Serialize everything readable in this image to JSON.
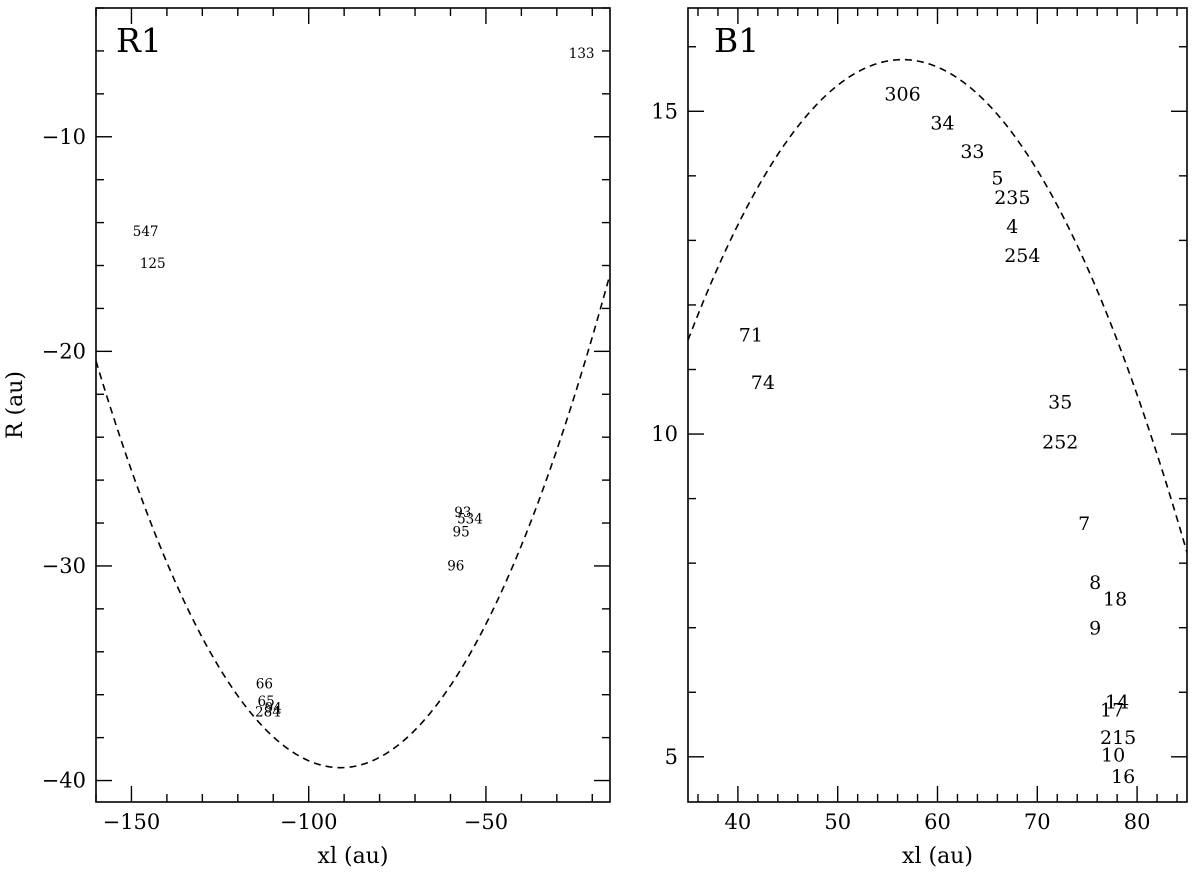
{
  "chart_data": [
    {
      "type": "scatter",
      "title": "R1",
      "xlabel": "xl (au)",
      "ylabel": "R (au)",
      "xlim": [
        -160,
        -15
      ],
      "ylim": [
        -41,
        -4
      ],
      "x_ticks": [
        -150,
        -100,
        -50
      ],
      "y_ticks": [
        -10,
        -20,
        -30,
        -40
      ],
      "x_minor_step": 10,
      "y_minor_step": 2,
      "x_tick_labels": [
        "−150",
        "−100",
        "−50"
      ],
      "y_tick_labels": [
        "−10",
        "−20",
        "−30",
        "−40"
      ],
      "grid": false,
      "curve": {
        "style": "dashed",
        "model": "parabola",
        "vertex": [
          -91,
          -39.4
        ],
        "a": 0.00398
      },
      "points": [
        {
          "label": "133",
          "x": -23,
          "y": -6.1
        },
        {
          "label": "547",
          "x": -146,
          "y": -14.4
        },
        {
          "label": "125",
          "x": -144,
          "y": -15.9
        },
        {
          "label": "93",
          "x": -56.5,
          "y": -27.5
        },
        {
          "label": "534",
          "x": -54.5,
          "y": -27.8
        },
        {
          "label": "95",
          "x": -57,
          "y": -28.4
        },
        {
          "label": "96",
          "x": -58.5,
          "y": -30.0
        },
        {
          "label": "66",
          "x": -112.5,
          "y": -35.5
        },
        {
          "label": "65",
          "x": -112,
          "y": -36.3
        },
        {
          "label": "94",
          "x": -110,
          "y": -36.6
        },
        {
          "label": "284",
          "x": -111.5,
          "y": -36.8
        }
      ]
    },
    {
      "type": "scatter",
      "title": "B1",
      "xlabel": "xl (au)",
      "ylabel": "",
      "xlim": [
        35,
        85
      ],
      "ylim": [
        4.3,
        16.6
      ],
      "x_ticks": [
        40,
        50,
        60,
        70,
        80
      ],
      "y_ticks": [
        5,
        10,
        15
      ],
      "x_minor_step": 2,
      "y_minor_step": 1,
      "x_tick_labels": [
        "40",
        "50",
        "60",
        "70",
        "80"
      ],
      "y_tick_labels": [
        "5",
        "10",
        "15"
      ],
      "grid": false,
      "curve": {
        "style": "dashed",
        "model": "parabola",
        "vertex": [
          56.5,
          15.8
        ],
        "a": -0.0094
      },
      "points": [
        {
          "label": "306",
          "x": 56.5,
          "y": 15.27
        },
        {
          "label": "34",
          "x": 60.5,
          "y": 14.82
        },
        {
          "label": "33",
          "x": 63.5,
          "y": 14.38
        },
        {
          "label": "5",
          "x": 66,
          "y": 13.97
        },
        {
          "label": "235",
          "x": 67.5,
          "y": 13.67
        },
        {
          "label": "4",
          "x": 67.5,
          "y": 13.22
        },
        {
          "label": "254",
          "x": 68.5,
          "y": 12.77
        },
        {
          "label": "71",
          "x": 41.3,
          "y": 11.54
        },
        {
          "label": "74",
          "x": 42.5,
          "y": 10.8
        },
        {
          "label": "35",
          "x": 72.3,
          "y": 10.5
        },
        {
          "label": "252",
          "x": 72.3,
          "y": 9.88
        },
        {
          "label": "7",
          "x": 74.7,
          "y": 8.62
        },
        {
          "label": "8",
          "x": 75.8,
          "y": 7.7
        },
        {
          "label": "18",
          "x": 77.8,
          "y": 7.45
        },
        {
          "label": "9",
          "x": 75.8,
          "y": 7.0
        },
        {
          "label": "14",
          "x": 78,
          "y": 5.85
        },
        {
          "label": "17",
          "x": 77.5,
          "y": 5.73
        },
        {
          "label": "215",
          "x": 78.1,
          "y": 5.3
        },
        {
          "label": "10",
          "x": 77.6,
          "y": 5.03
        },
        {
          "label": "16",
          "x": 78.6,
          "y": 4.7
        }
      ]
    }
  ]
}
